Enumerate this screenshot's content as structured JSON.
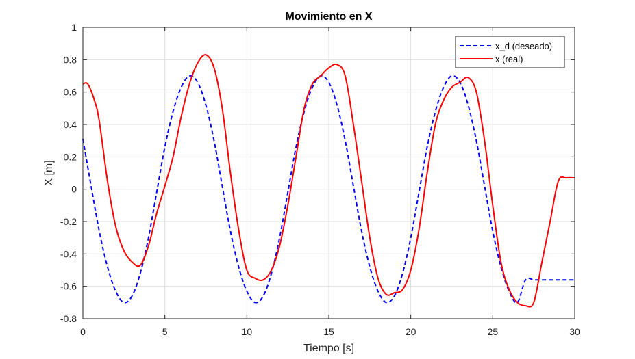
{
  "chart_data": {
    "type": "line",
    "title": "Movimiento en X",
    "xlabel": "Tiempo [s]",
    "ylabel": "X [m]",
    "xlim": [
      0,
      30
    ],
    "ylim": [
      -0.8,
      1
    ],
    "xticks": [
      0,
      5,
      10,
      15,
      20,
      25,
      30
    ],
    "yticks": [
      -0.8,
      -0.6,
      -0.4,
      -0.2,
      0,
      0.2,
      0.4,
      0.6,
      0.8,
      1
    ],
    "grid": true,
    "legend_position": "top-right",
    "series": [
      {
        "name": "x_d (deseado)",
        "color": "#0000ff",
        "style": "dashed",
        "x": [
          0.0,
          0.5,
          1.0,
          1.5,
          2.0,
          2.5,
          3.0,
          3.5,
          4.0,
          4.5,
          5.0,
          5.5,
          6.0,
          6.5,
          7.0,
          7.5,
          8.0,
          8.5,
          9.0,
          9.5,
          10.0,
          10.5,
          11.0,
          11.5,
          12.0,
          12.5,
          13.0,
          13.5,
          14.0,
          14.5,
          15.0,
          15.5,
          16.0,
          16.5,
          17.0,
          17.5,
          18.0,
          18.5,
          19.0,
          19.5,
          20.0,
          20.5,
          21.0,
          21.5,
          22.0,
          22.5,
          23.0,
          23.5,
          24.0,
          24.5,
          25.0,
          25.5,
          26.0,
          26.5,
          27.0,
          27.5,
          28.0,
          28.5,
          29.0,
          29.5,
          30.0
        ],
        "y": [
          0.31,
          0.02,
          -0.26,
          -0.48,
          -0.63,
          -0.7,
          -0.66,
          -0.52,
          -0.3,
          -0.02,
          0.26,
          0.48,
          0.63,
          0.7,
          0.66,
          0.52,
          0.3,
          0.02,
          -0.26,
          -0.48,
          -0.63,
          -0.7,
          -0.66,
          -0.52,
          -0.3,
          -0.02,
          0.26,
          0.48,
          0.63,
          0.7,
          0.66,
          0.52,
          0.3,
          0.02,
          -0.26,
          -0.48,
          -0.63,
          -0.7,
          -0.66,
          -0.52,
          -0.3,
          -0.02,
          0.26,
          0.48,
          0.63,
          0.7,
          0.66,
          0.52,
          0.3,
          0.02,
          -0.26,
          -0.48,
          -0.63,
          -0.7,
          -0.56,
          -0.56,
          -0.56,
          -0.56,
          -0.56,
          -0.56,
          -0.56
        ]
      },
      {
        "name": "x (real)",
        "color": "#ff0000",
        "style": "solid",
        "x": [
          0.0,
          0.3,
          0.7,
          1.0,
          1.5,
          2.0,
          2.5,
          3.0,
          3.5,
          4.0,
          4.5,
          5.0,
          5.5,
          6.0,
          6.5,
          7.0,
          7.5,
          8.0,
          8.5,
          9.0,
          9.5,
          10.0,
          10.5,
          11.0,
          11.5,
          12.0,
          12.5,
          13.0,
          13.5,
          14.0,
          14.5,
          15.0,
          15.5,
          16.0,
          16.5,
          17.0,
          17.5,
          18.0,
          18.5,
          19.0,
          19.5,
          20.0,
          20.5,
          21.0,
          21.5,
          22.0,
          22.5,
          23.0,
          23.5,
          24.0,
          24.5,
          25.0,
          25.5,
          26.0,
          26.5,
          27.0,
          27.5,
          28.0,
          28.5,
          29.0,
          29.5,
          30.0
        ],
        "y": [
          0.65,
          0.65,
          0.55,
          0.42,
          0.05,
          -0.23,
          -0.38,
          -0.45,
          -0.47,
          -0.35,
          -0.15,
          0.02,
          0.2,
          0.45,
          0.65,
          0.78,
          0.83,
          0.75,
          0.5,
          0.1,
          -0.25,
          -0.5,
          -0.55,
          -0.56,
          -0.5,
          -0.35,
          -0.1,
          0.2,
          0.5,
          0.65,
          0.7,
          0.75,
          0.77,
          0.7,
          0.4,
          0.05,
          -0.3,
          -0.55,
          -0.65,
          -0.64,
          -0.62,
          -0.5,
          -0.25,
          0.1,
          0.4,
          0.55,
          0.63,
          0.66,
          0.69,
          0.6,
          0.3,
          -0.1,
          -0.45,
          -0.62,
          -0.7,
          -0.72,
          -0.7,
          -0.45,
          -0.2,
          0.05,
          0.07,
          0.07
        ]
      }
    ]
  }
}
